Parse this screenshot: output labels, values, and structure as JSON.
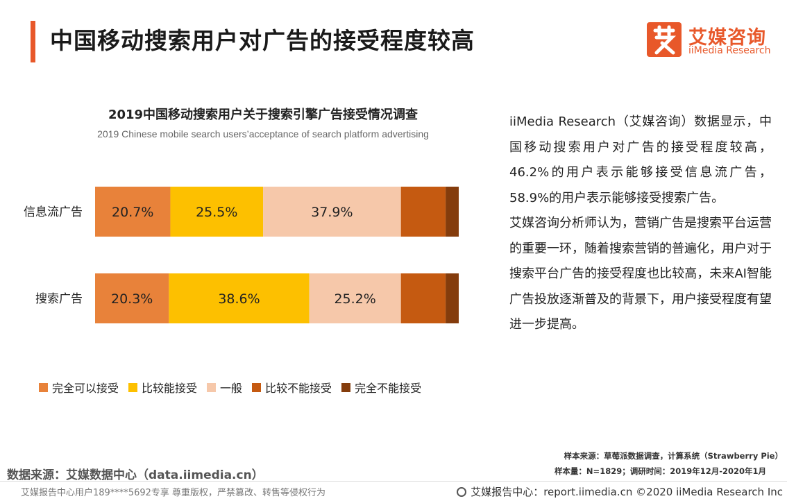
{
  "header": {
    "title": "中国移动搜索用户对广告的接受程度较高",
    "logo_cn": "艾媒咨询",
    "logo_en": "iiMedia Research"
  },
  "colors": {
    "accent": "#e8582a",
    "series": [
      "#e8823a",
      "#fdc000",
      "#f6c8aa",
      "#c55a11",
      "#843c0c"
    ]
  },
  "chart_data": {
    "type": "bar",
    "orientation": "horizontal",
    "stacked": true,
    "title": "2019中国移动搜索用户关于搜索引擎广告接受情况调查",
    "subtitle": "2019 Chinese mobile search users’acceptance of search platform advertising",
    "categories": [
      "信息流广告",
      "搜索广告"
    ],
    "series": [
      {
        "name": "完全可以接受",
        "values": [
          20.7,
          20.3
        ],
        "labels": [
          "20.7%",
          "20.3%"
        ]
      },
      {
        "name": "比较能接受",
        "values": [
          25.5,
          38.6
        ],
        "labels": [
          "25.5%",
          "38.6%"
        ]
      },
      {
        "name": "一般",
        "values": [
          37.9,
          25.2
        ],
        "labels": [
          "37.9%",
          "25.2%"
        ]
      },
      {
        "name": "比较不能接受",
        "values": [
          12.3,
          12.3
        ],
        "labels": [
          "",
          ""
        ]
      },
      {
        "name": "完全不能接受",
        "values": [
          3.6,
          3.6
        ],
        "labels": [
          "",
          ""
        ]
      }
    ],
    "xlim": [
      0,
      100
    ],
    "legend": "bottom"
  },
  "description": {
    "p1": "iiMedia Research（艾媒咨询）数据显示，中国移动搜索用户对广告的接受程度较高，46.2%的用户表示能够接受信息流广告，58.9%的用户表示能够接受搜索广告。",
    "p2": "艾媒咨询分析师认为，营销广告是搜索平台运营的重要一环，随着搜索营销的普遍化，用户对于搜索平台广告的接受程度也比较高，未来AI智能广告投放逐渐普及的背景下，用户接受程度有望进一步提高。"
  },
  "source": {
    "data_source": "数据来源：艾媒数据中心（data.iimedia.cn）",
    "sample_source": "样本来源：草莓派数据调查，计算系统（Strawberry Pie）",
    "sample_info": "样本量：N=1829；调研时间：2019年12月-2020年1月"
  },
  "footer": {
    "left": "艾媒报告中心用户189****5692专享 尊重版权，严禁篡改、转售等侵权行为",
    "right": "艾媒报告中心：report.iimedia.cn  ©2020  iiMedia Research Inc"
  }
}
